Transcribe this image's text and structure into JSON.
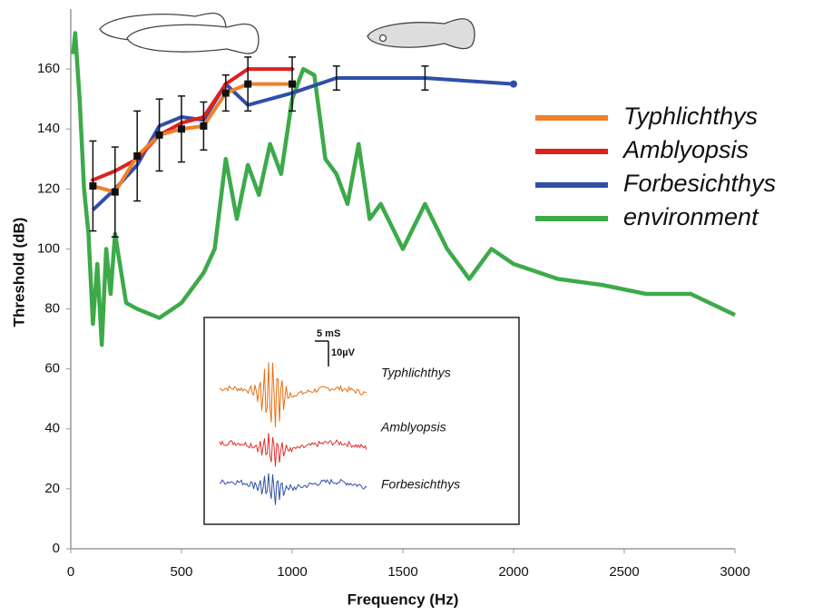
{
  "chart_data": {
    "type": "line",
    "x_label": "Frequency (Hz)",
    "y_label": "Threshold (dB)",
    "xlim": [
      0,
      3000
    ],
    "ylim": [
      0,
      180
    ],
    "xticks": [
      0,
      500,
      1000,
      1500,
      2000,
      2500,
      3000
    ],
    "yticks": [
      0,
      20,
      40,
      60,
      80,
      100,
      120,
      140,
      160
    ],
    "legend": "right",
    "series": [
      {
        "name": "Typhlichthys",
        "color": "#f07f2a",
        "marker": "square",
        "x": [
          100,
          200,
          300,
          400,
          500,
          600,
          700,
          800,
          1000
        ],
        "values": [
          121,
          119,
          131,
          138,
          140,
          141,
          152,
          155,
          155
        ],
        "errors": [
          15,
          15,
          15,
          12,
          11,
          8,
          6,
          9,
          9
        ]
      },
      {
        "name": "Amblyopsis",
        "color": "#e02020",
        "marker": "diamond",
        "x": [
          100,
          200,
          300,
          400,
          500,
          600,
          700,
          800,
          1000
        ],
        "values": [
          123,
          126,
          130,
          138,
          142,
          144,
          155,
          160,
          160
        ]
      },
      {
        "name": "Forbesichthys",
        "color": "#2f4fa8",
        "marker": "end-dot",
        "x": [
          100,
          200,
          300,
          400,
          500,
          600,
          700,
          800,
          1000,
          1200,
          1600,
          2000
        ],
        "values": [
          113,
          120,
          128,
          141,
          144,
          143,
          155,
          148,
          152,
          157,
          157,
          155
        ],
        "errors": [
          null,
          null,
          null,
          null,
          null,
          null,
          null,
          null,
          null,
          4,
          4,
          null
        ]
      },
      {
        "name": "environment",
        "color": "#3daa4a",
        "marker": "none",
        "x": [
          10,
          20,
          40,
          60,
          80,
          100,
          120,
          140,
          160,
          180,
          200,
          250,
          300,
          400,
          500,
          600,
          650,
          700,
          750,
          800,
          850,
          900,
          950,
          1000,
          1050,
          1100,
          1150,
          1200,
          1250,
          1300,
          1350,
          1400,
          1500,
          1600,
          1700,
          1800,
          1900,
          2000,
          2200,
          2400,
          2600,
          2800,
          3000
        ],
        "values": [
          165,
          172,
          150,
          120,
          105,
          75,
          95,
          68,
          100,
          85,
          105,
          82,
          80,
          77,
          82,
          92,
          100,
          130,
          110,
          128,
          118,
          135,
          125,
          150,
          160,
          158,
          130,
          125,
          115,
          135,
          110,
          115,
          100,
          115,
          100,
          90,
          100,
          95,
          90,
          88,
          85,
          85,
          78
        ]
      }
    ],
    "inset": {
      "scale_time": "5 mS",
      "scale_voltage": "10µV",
      "labels": [
        "Typhlichthys",
        "Amblyopsis",
        "Forbesichthys"
      ]
    }
  }
}
